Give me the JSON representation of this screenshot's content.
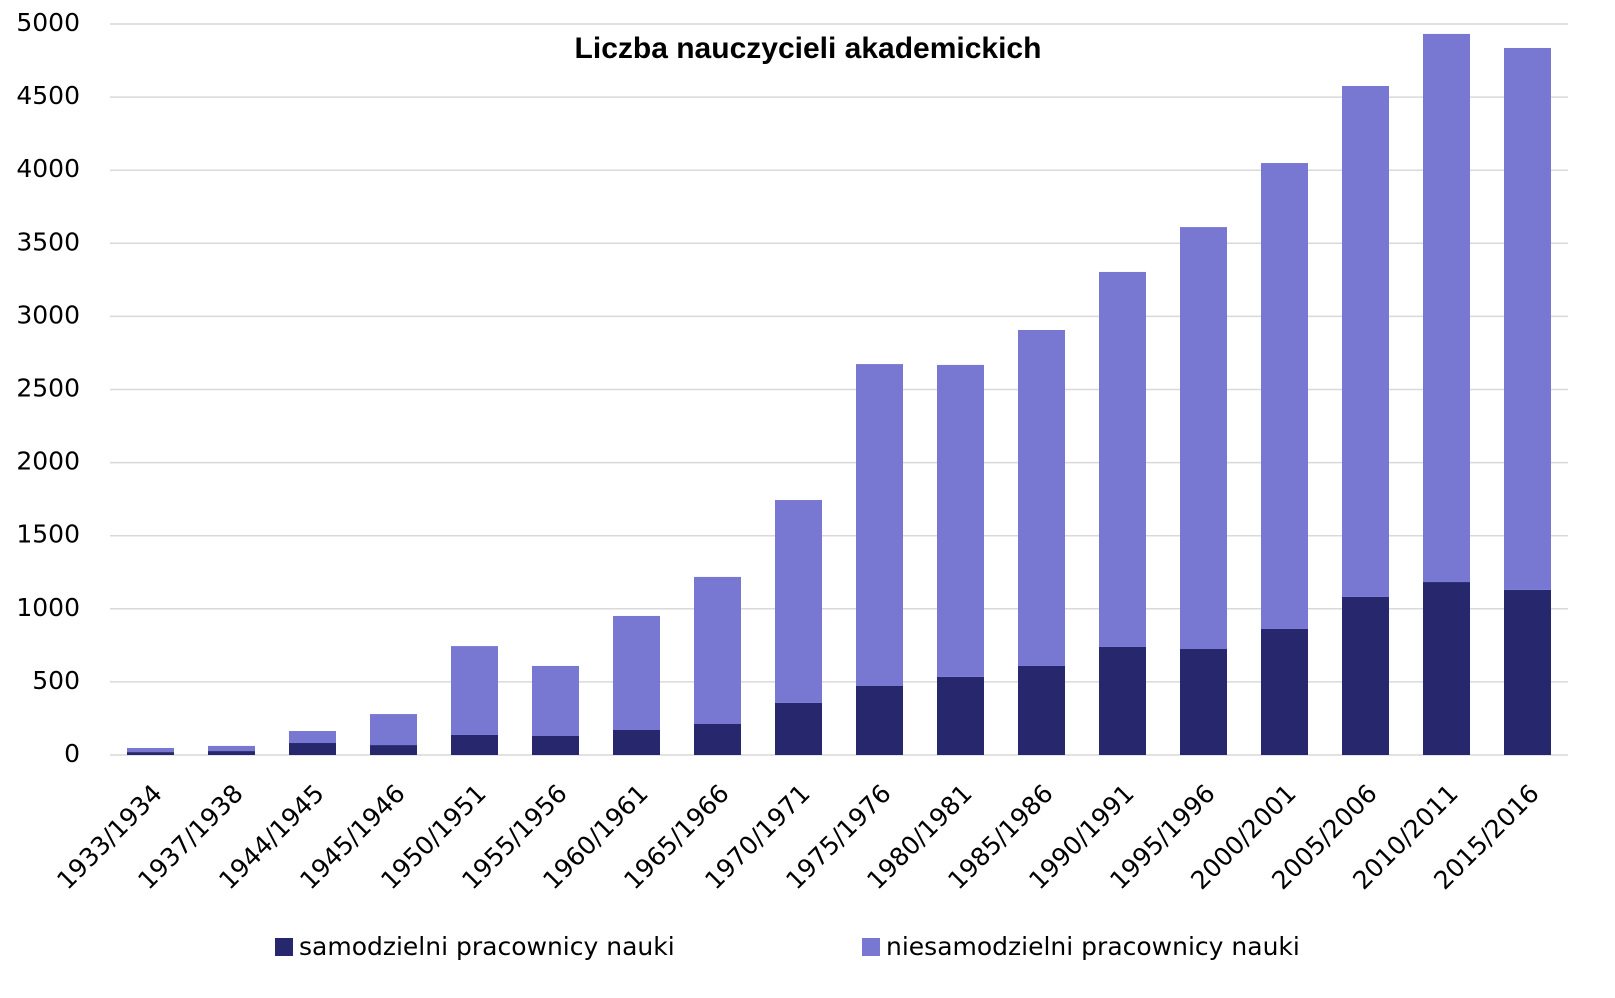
{
  "chart_data": {
    "type": "stacked_bar",
    "title": "Liczba nauczycieli akademickich",
    "categories": [
      "1933/1934",
      "1937/1938",
      "1944/1945",
      "1945/1946",
      "1950/1951",
      "1955/1956",
      "1960/1961",
      "1965/1966",
      "1970/1971",
      "1975/1976",
      "1980/1981",
      "1985/1986",
      "1990/1991",
      "1995/1996",
      "2000/2001",
      "2005/2006",
      "2010/2011",
      "2015/2016"
    ],
    "series": [
      {
        "name": "samodzielni pracownicy nauki",
        "color": "#27276e",
        "values": [
          20,
          27,
          82,
          68,
          137,
          130,
          171,
          212,
          356,
          472,
          534,
          609,
          739,
          725,
          862,
          1081,
          1183,
          1129
        ]
      },
      {
        "name": "niesamodzielni pracownicy nauki",
        "color": "#7878d2",
        "values": [
          28,
          35,
          82,
          212,
          608,
          479,
          780,
          1006,
          1388,
          2202,
          2134,
          2298,
          2565,
          2886,
          3187,
          3495,
          3749,
          3707
        ]
      }
    ],
    "ylim": [
      0,
      5000
    ],
    "yticks": [
      0,
      500,
      1000,
      1500,
      2000,
      2500,
      3000,
      3500,
      4000,
      4500,
      5000
    ],
    "grid": true,
    "legend": "bottom"
  }
}
